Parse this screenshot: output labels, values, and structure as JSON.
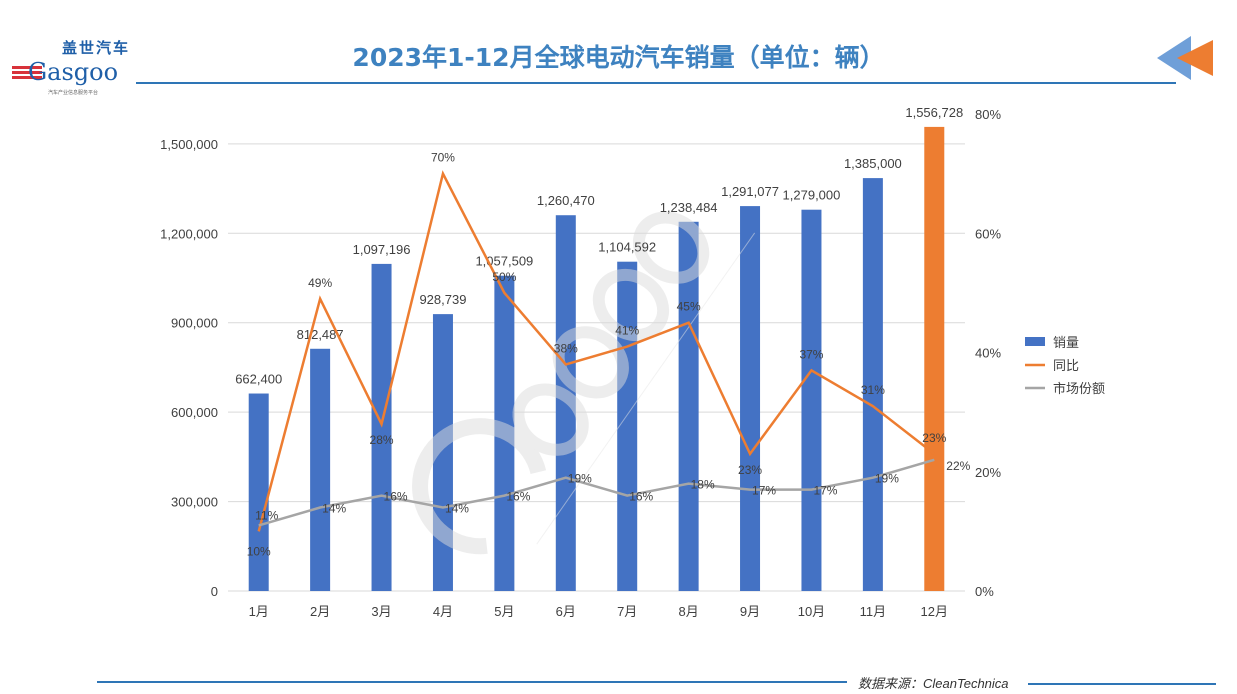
{
  "logo": {
    "cn": "盖世汽车",
    "en": "Gasgoo",
    "sub": "汽车产业信息服务平台"
  },
  "watermark": {
    "cn": "盖世汽车",
    "en": "Gasgoo",
    "sub": "汽车产业信息服务平台"
  },
  "title": "2023年1-12月全球电动汽车销量（单位：辆）",
  "footer": "数据来源：CleanTechnica",
  "colors": {
    "bar": "#4472c4",
    "bar_highlight": "#ed7d31",
    "yoy": "#ed7d31",
    "share": "#a5a5a5",
    "brand": "#2e75b6"
  },
  "chart_data": {
    "type": "bar+line",
    "categories": [
      "1月",
      "2月",
      "3月",
      "4月",
      "5月",
      "6月",
      "7月",
      "8月",
      "9月",
      "10月",
      "11月",
      "12月"
    ],
    "series": [
      {
        "name": "销量",
        "type": "bar",
        "axis": "left",
        "values": [
          662400,
          812487,
          1097196,
          928739,
          1057509,
          1260470,
          1104592,
          1238484,
          1291077,
          1279000,
          1385000,
          1556728
        ],
        "labels": [
          "662,400",
          "812,487",
          "1,097,196",
          "928,739",
          "1,057,509",
          "1,260,470",
          "1,104,592",
          "1,238,484",
          "1,291,077",
          "1,279,000",
          "1,385,000",
          "1,556,728"
        ]
      },
      {
        "name": "同比",
        "type": "line",
        "axis": "right",
        "values": [
          10,
          49,
          28,
          70,
          50,
          38,
          41,
          45,
          23,
          37,
          31,
          23
        ]
      },
      {
        "name": "市场份额",
        "type": "line",
        "axis": "right",
        "values": [
          11,
          14,
          16,
          14,
          16,
          19,
          16,
          18,
          17,
          17,
          19,
          22
        ]
      }
    ],
    "left_axis": {
      "ylim": [
        0,
        1600000
      ],
      "ticks": [
        "0",
        "300,000",
        "600,000",
        "900,000",
        "1,200,000",
        "1,500,000"
      ],
      "tick_values": [
        0,
        300000,
        600000,
        900000,
        1200000,
        1500000
      ]
    },
    "right_axis": {
      "ylim": [
        0,
        80
      ],
      "unit": "%",
      "ticks": [
        "0%",
        "20%",
        "40%",
        "60%",
        "80%"
      ],
      "tick_values": [
        0,
        20,
        40,
        60,
        80
      ]
    },
    "grid": true,
    "legend": "right"
  }
}
